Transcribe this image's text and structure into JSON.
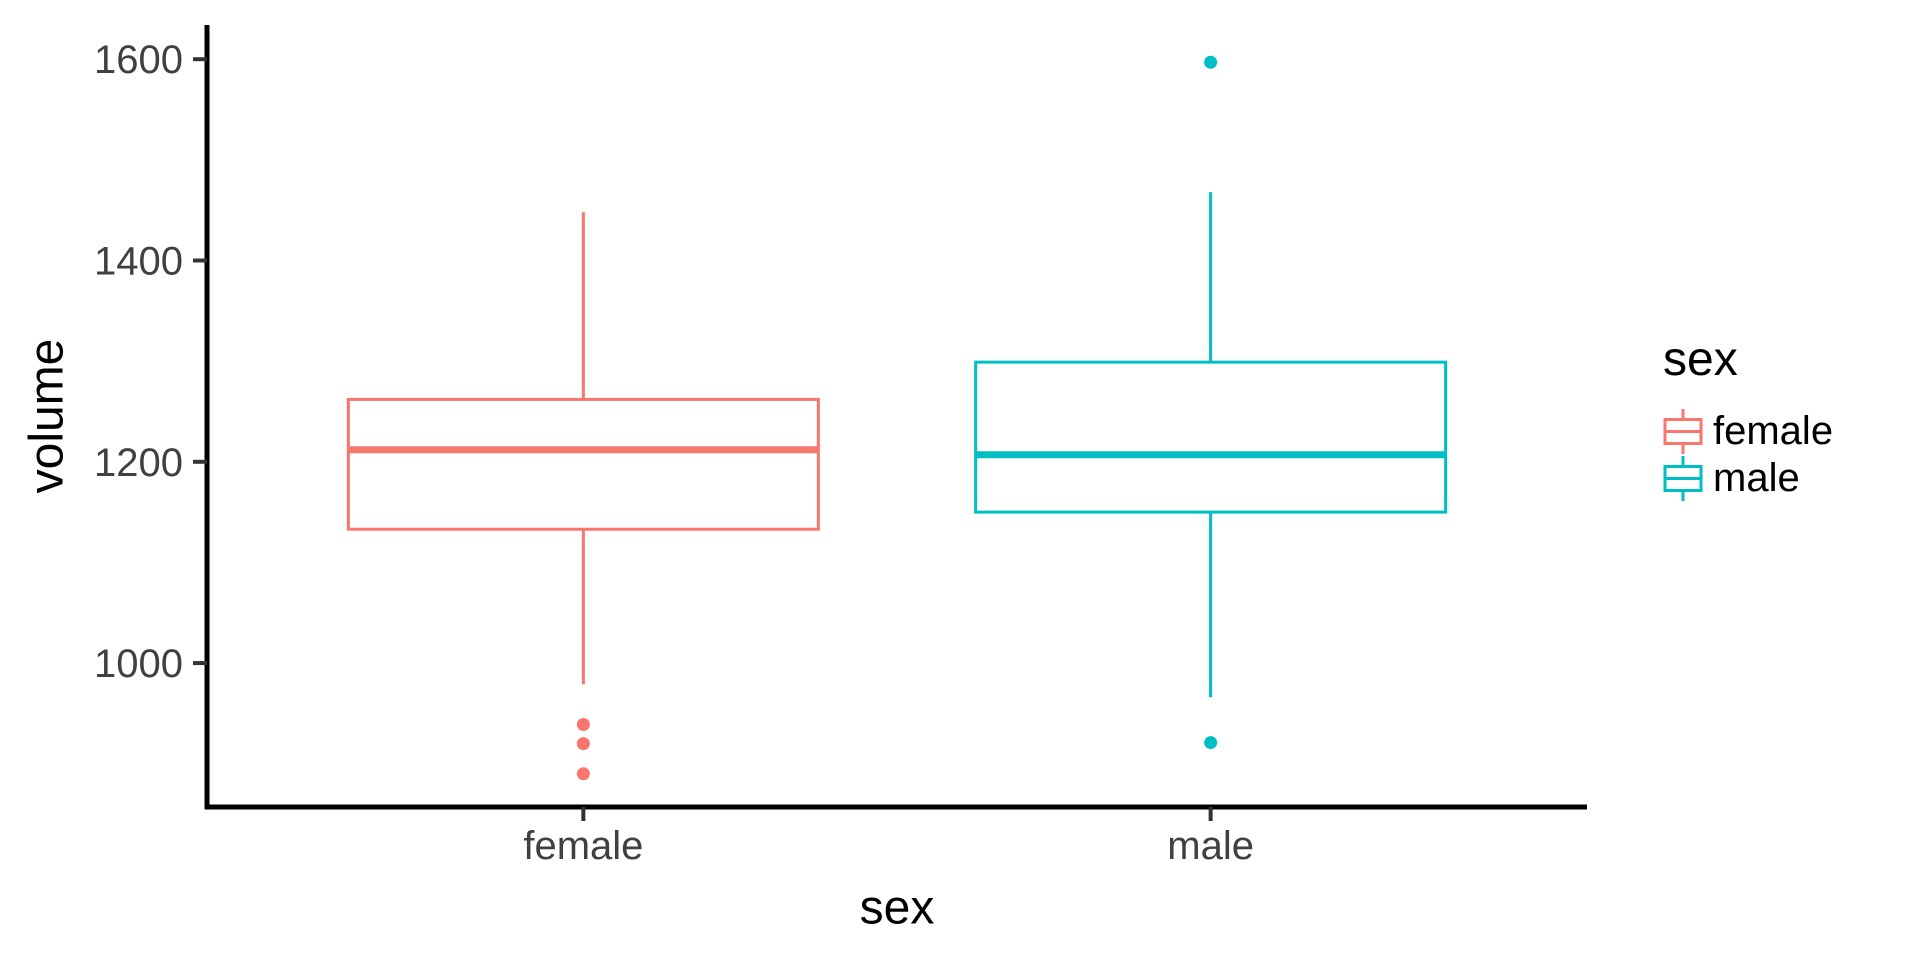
{
  "chart_data": {
    "type": "boxplot",
    "title": "",
    "xlabel": "sex",
    "ylabel": "volume",
    "categories": [
      "female",
      "male"
    ],
    "series": [
      {
        "name": "female",
        "color": "#F8766D",
        "min": 979,
        "q1": 1133,
        "median": 1212,
        "q3": 1262,
        "max": 1448,
        "outliers": [
          939,
          920,
          890
        ]
      },
      {
        "name": "male",
        "color": "#00BFC4",
        "min": 966,
        "q1": 1150,
        "median": 1207,
        "q3": 1299,
        "max": 1468,
        "outliers": [
          1597,
          921
        ]
      }
    ],
    "y_axis": {
      "ticks": [
        1000,
        1200,
        1400,
        1600
      ],
      "range": [
        857,
        1634
      ]
    },
    "x_axis": {
      "ticks": [
        "female",
        "male"
      ]
    },
    "legend": {
      "title": "sex",
      "position": "right",
      "items": [
        {
          "label": "female",
          "color": "#F8766D"
        },
        {
          "label": "male",
          "color": "#00BFC4"
        }
      ]
    },
    "style": {
      "background": "#FFFFFF",
      "axis_color": "#000000",
      "tick_label_color": "#404040",
      "grid": "off",
      "theme": "classic",
      "box_fill": "#FFFFFF"
    }
  }
}
